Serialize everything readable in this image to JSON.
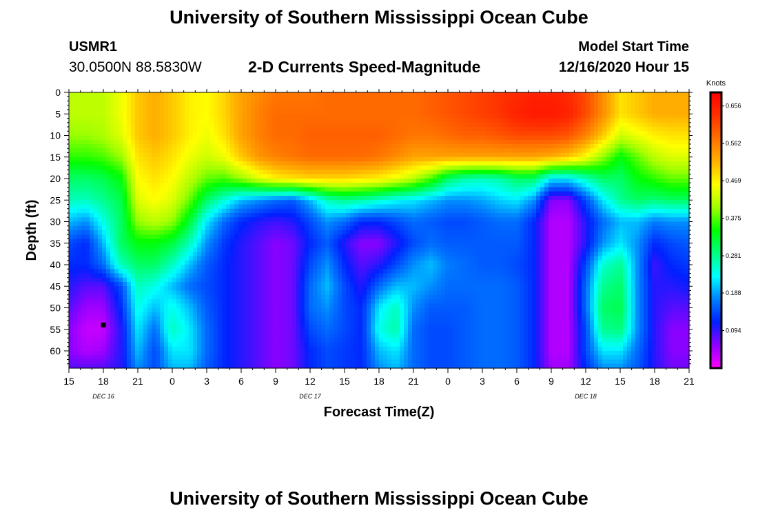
{
  "header": {
    "title": "University of Southern Mississippi Ocean Cube",
    "station_id": "USMR1",
    "station_coords": "30.0500N 88.5830W",
    "plot_title": "2-D Currents Speed-Magnitude",
    "start_label": "Model Start Time",
    "start_value": "12/16/2020 Hour 15"
  },
  "footer": {
    "title": "University of Southern Mississippi Ocean Cube"
  },
  "chart_data": {
    "type": "heatmap",
    "title": "2-D Currents Speed-Magnitude",
    "xlabel": "Forecast Time(Z)",
    "ylabel": "Depth (ft)",
    "x_tick_labels": [
      "15",
      "18",
      "21",
      "0",
      "3",
      "6",
      "9",
      "12",
      "15",
      "18",
      "21",
      "0",
      "3",
      "6",
      "9",
      "12",
      "15",
      "18",
      "21"
    ],
    "x_hours": [
      15,
      18,
      21,
      24,
      27,
      30,
      33,
      36,
      39,
      42,
      45,
      48,
      51,
      54,
      57,
      60,
      63,
      66,
      69
    ],
    "xlim_hours": [
      15,
      69
    ],
    "date_labels": [
      {
        "text": "DEC 16",
        "hour": 18
      },
      {
        "text": "DEC 17",
        "hour": 36
      },
      {
        "text": "DEC 18",
        "hour": 60
      }
    ],
    "y_ticks": [
      0,
      5,
      10,
      15,
      20,
      25,
      30,
      35,
      40,
      45,
      50,
      55,
      60
    ],
    "ylim": [
      0,
      64
    ],
    "colorbar": {
      "unit": "Knots",
      "ticks": [
        0.094,
        0.188,
        0.281,
        0.375,
        0.469,
        0.562,
        0.656
      ],
      "range": [
        0,
        0.69
      ],
      "colors": [
        "#ff00ff",
        "#9000ff",
        "#0020ff",
        "#0080ff",
        "#00ffff",
        "#00ff80",
        "#00ff00",
        "#a0ff00",
        "#ffff00",
        "#ffb000",
        "#ff7000",
        "#ff3000",
        "#ff0000"
      ]
    },
    "marker": {
      "hour": 18,
      "depth": 54
    },
    "grid": false,
    "legend_position": "right",
    "field_samples": {
      "hours": [
        15,
        16.5,
        18,
        19.5,
        21,
        22.5,
        24,
        25.5,
        27,
        28.5,
        30,
        31.5,
        33,
        34.5,
        36,
        37.5,
        39,
        40.5,
        42,
        43.5,
        45,
        46.5,
        48,
        49.5,
        51,
        52.5,
        54,
        55.5,
        57,
        58.5,
        60,
        61.5,
        63,
        64.5,
        66,
        67.5,
        69
      ],
      "depths": [
        0,
        5,
        10,
        15,
        20,
        25,
        30,
        35,
        40,
        45,
        50,
        55,
        60,
        64
      ],
      "values": [
        [
          0.42,
          0.42,
          0.42,
          0.45,
          0.5,
          0.52,
          0.5,
          0.47,
          0.46,
          0.49,
          0.53,
          0.55,
          0.57,
          0.57,
          0.57,
          0.58,
          0.58,
          0.58,
          0.58,
          0.58,
          0.58,
          0.59,
          0.6,
          0.61,
          0.62,
          0.63,
          0.64,
          0.65,
          0.65,
          0.64,
          0.61,
          0.55,
          0.48,
          0.5,
          0.52,
          0.52,
          0.52
        ],
        [
          0.42,
          0.42,
          0.42,
          0.45,
          0.5,
          0.52,
          0.5,
          0.47,
          0.46,
          0.49,
          0.53,
          0.56,
          0.58,
          0.58,
          0.58,
          0.58,
          0.58,
          0.58,
          0.58,
          0.58,
          0.58,
          0.59,
          0.6,
          0.61,
          0.62,
          0.63,
          0.65,
          0.66,
          0.66,
          0.65,
          0.61,
          0.55,
          0.48,
          0.5,
          0.52,
          0.52,
          0.52
        ],
        [
          0.4,
          0.4,
          0.41,
          0.44,
          0.5,
          0.52,
          0.5,
          0.47,
          0.45,
          0.48,
          0.53,
          0.56,
          0.58,
          0.58,
          0.59,
          0.59,
          0.59,
          0.59,
          0.59,
          0.58,
          0.57,
          0.57,
          0.58,
          0.59,
          0.59,
          0.6,
          0.61,
          0.61,
          0.61,
          0.6,
          0.56,
          0.5,
          0.43,
          0.45,
          0.47,
          0.48,
          0.48
        ],
        [
          0.36,
          0.36,
          0.37,
          0.4,
          0.48,
          0.5,
          0.48,
          0.45,
          0.43,
          0.45,
          0.5,
          0.54,
          0.56,
          0.57,
          0.58,
          0.58,
          0.58,
          0.58,
          0.57,
          0.55,
          0.53,
          0.53,
          0.53,
          0.53,
          0.53,
          0.53,
          0.53,
          0.53,
          0.52,
          0.5,
          0.46,
          0.4,
          0.34,
          0.38,
          0.42,
          0.44,
          0.44
        ],
        [
          0.3,
          0.3,
          0.31,
          0.34,
          0.46,
          0.48,
          0.46,
          0.42,
          0.38,
          0.37,
          0.4,
          0.44,
          0.47,
          0.48,
          0.49,
          0.49,
          0.49,
          0.48,
          0.47,
          0.45,
          0.42,
          0.37,
          0.3,
          0.27,
          0.26,
          0.27,
          0.3,
          0.3,
          0.22,
          0.22,
          0.26,
          0.3,
          0.3,
          0.34,
          0.36,
          0.38,
          0.38
        ],
        [
          0.26,
          0.26,
          0.28,
          0.31,
          0.44,
          0.46,
          0.44,
          0.38,
          0.3,
          0.25,
          0.2,
          0.18,
          0.16,
          0.15,
          0.2,
          0.26,
          0.28,
          0.27,
          0.25,
          0.23,
          0.22,
          0.2,
          0.18,
          0.18,
          0.19,
          0.21,
          0.22,
          0.18,
          0.06,
          0.06,
          0.14,
          0.22,
          0.28,
          0.3,
          0.29,
          0.3,
          0.3
        ],
        [
          0.2,
          0.18,
          0.24,
          0.3,
          0.4,
          0.42,
          0.4,
          0.32,
          0.22,
          0.16,
          0.12,
          0.1,
          0.09,
          0.1,
          0.14,
          0.18,
          0.16,
          0.12,
          0.12,
          0.14,
          0.16,
          0.15,
          0.14,
          0.14,
          0.15,
          0.16,
          0.16,
          0.12,
          0.04,
          0.04,
          0.1,
          0.16,
          0.2,
          0.2,
          0.17,
          0.18,
          0.18
        ],
        [
          0.14,
          0.12,
          0.2,
          0.3,
          0.34,
          0.34,
          0.32,
          0.26,
          0.18,
          0.13,
          0.1,
          0.08,
          0.06,
          0.07,
          0.12,
          0.15,
          0.1,
          0.06,
          0.06,
          0.1,
          0.14,
          0.16,
          0.15,
          0.15,
          0.15,
          0.15,
          0.15,
          0.12,
          0.04,
          0.04,
          0.1,
          0.18,
          0.22,
          0.18,
          0.12,
          0.14,
          0.15
        ],
        [
          0.12,
          0.12,
          0.16,
          0.26,
          0.3,
          0.3,
          0.26,
          0.2,
          0.15,
          0.12,
          0.1,
          0.08,
          0.06,
          0.07,
          0.14,
          0.18,
          0.12,
          0.08,
          0.1,
          0.14,
          0.18,
          0.2,
          0.17,
          0.16,
          0.15,
          0.15,
          0.14,
          0.12,
          0.04,
          0.04,
          0.14,
          0.25,
          0.28,
          0.18,
          0.09,
          0.12,
          0.13
        ],
        [
          0.1,
          0.08,
          0.08,
          0.14,
          0.26,
          0.24,
          0.2,
          0.16,
          0.14,
          0.12,
          0.1,
          0.08,
          0.06,
          0.07,
          0.16,
          0.2,
          0.14,
          0.1,
          0.16,
          0.2,
          0.2,
          0.18,
          0.16,
          0.16,
          0.16,
          0.16,
          0.15,
          0.12,
          0.04,
          0.04,
          0.16,
          0.28,
          0.3,
          0.18,
          0.1,
          0.1,
          0.11
        ],
        [
          0.08,
          0.05,
          0.05,
          0.12,
          0.24,
          0.2,
          0.24,
          0.2,
          0.15,
          0.12,
          0.1,
          0.08,
          0.06,
          0.07,
          0.16,
          0.18,
          0.14,
          0.12,
          0.22,
          0.26,
          0.18,
          0.15,
          0.15,
          0.15,
          0.16,
          0.16,
          0.15,
          0.12,
          0.04,
          0.04,
          0.16,
          0.3,
          0.31,
          0.18,
          0.1,
          0.08,
          0.08
        ],
        [
          0.06,
          0.03,
          0.03,
          0.1,
          0.22,
          0.16,
          0.26,
          0.22,
          0.16,
          0.12,
          0.1,
          0.08,
          0.06,
          0.07,
          0.14,
          0.16,
          0.14,
          0.12,
          0.24,
          0.27,
          0.16,
          0.14,
          0.14,
          0.15,
          0.16,
          0.16,
          0.15,
          0.12,
          0.04,
          0.04,
          0.14,
          0.28,
          0.29,
          0.18,
          0.1,
          0.06,
          0.06
        ],
        [
          0.06,
          0.04,
          0.05,
          0.1,
          0.2,
          0.14,
          0.22,
          0.22,
          0.16,
          0.12,
          0.1,
          0.08,
          0.06,
          0.07,
          0.12,
          0.14,
          0.13,
          0.12,
          0.2,
          0.22,
          0.16,
          0.14,
          0.14,
          0.15,
          0.16,
          0.16,
          0.15,
          0.12,
          0.04,
          0.04,
          0.14,
          0.22,
          0.22,
          0.16,
          0.1,
          0.06,
          0.06
        ],
        [
          0.08,
          0.08,
          0.08,
          0.1,
          0.18,
          0.14,
          0.2,
          0.2,
          0.15,
          0.12,
          0.1,
          0.08,
          0.06,
          0.07,
          0.12,
          0.14,
          0.13,
          0.12,
          0.18,
          0.2,
          0.16,
          0.14,
          0.14,
          0.15,
          0.16,
          0.16,
          0.15,
          0.12,
          0.05,
          0.05,
          0.12,
          0.18,
          0.18,
          0.15,
          0.1,
          0.07,
          0.07
        ]
      ]
    }
  }
}
